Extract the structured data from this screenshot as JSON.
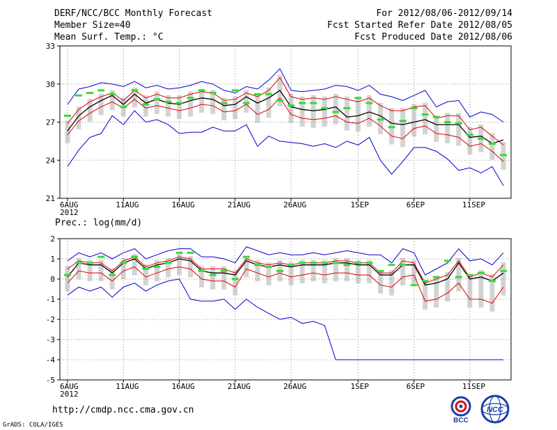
{
  "header": {
    "title": "DERF/NCC/BCC Monthly Forecast",
    "member_size": "Member Size=40",
    "variable": "Mean Surf. Temp.: °C",
    "period": "For 2012/08/06-2012/09/14",
    "started": "Fcst Started Refer Date 2012/08/05",
    "produced": "Fcst Produced Date 2012/08/06"
  },
  "footer": {
    "url": "http://cmdp.ncc.cma.gov.cn",
    "credit": "GrADS: COLA/IGES"
  },
  "logos": {
    "left": "BCC",
    "right": "NCC"
  },
  "colors": {
    "envelope": "#0000cc",
    "spread": "#dd0000",
    "mean": "#000000",
    "obs": "#33dd33",
    "bar": "#d3d3d3"
  },
  "chart_data": [
    {
      "type": "line",
      "title": "Mean Surf. Temp.: °C",
      "ylim": [
        21,
        33
      ],
      "yticks": [
        21,
        24,
        27,
        30,
        33
      ],
      "xticks": [
        {
          "day": 0,
          "label": "6AUG",
          "year": "2012"
        },
        {
          "day": 5,
          "label": "11AUG"
        },
        {
          "day": 10,
          "label": "16AUG"
        },
        {
          "day": 15,
          "label": "21AUG"
        },
        {
          "day": 20,
          "label": "26AUG"
        },
        {
          "day": 26,
          "label": "1SEP"
        },
        {
          "day": 31,
          "label": "6SEP"
        },
        {
          "day": 36,
          "label": "11SEP"
        }
      ],
      "days": 40,
      "grid": true,
      "series": [
        {
          "name": "ensemble max",
          "color": "#0000cc",
          "values": [
            28.4,
            29.6,
            29.8,
            30.1,
            30.0,
            29.8,
            30.2,
            29.7,
            29.9,
            29.6,
            29.7,
            29.9,
            30.2,
            30.0,
            29.5,
            29.3,
            29.8,
            29.6,
            30.3,
            31.2,
            29.5,
            29.4,
            29.5,
            29.6,
            29.9,
            29.8,
            29.5,
            29.9,
            29.2,
            29.0,
            28.7,
            29.1,
            29.5,
            28.2,
            28.6,
            28.7,
            27.4,
            27.8,
            27.6,
            27.0
          ]
        },
        {
          "name": "ensemble min",
          "color": "#0000cc",
          "values": [
            23.5,
            24.8,
            25.8,
            26.1,
            27.5,
            26.8,
            27.9,
            27.0,
            27.2,
            26.8,
            26.1,
            26.2,
            26.2,
            26.6,
            26.3,
            26.3,
            26.8,
            25.1,
            25.9,
            25.5,
            25.4,
            25.3,
            25.1,
            25.3,
            25.0,
            25.5,
            25.2,
            25.8,
            24.0,
            22.9,
            23.9,
            25.0,
            25.0,
            24.7,
            24.1,
            23.2,
            23.4,
            23.0,
            23.5,
            22.0
          ]
        },
        {
          "name": "upper spread",
          "color": "#dd0000",
          "values": [
            26.9,
            28.0,
            28.6,
            29.0,
            29.3,
            28.7,
            29.5,
            28.9,
            29.2,
            28.9,
            28.9,
            29.2,
            29.4,
            29.3,
            28.7,
            28.8,
            29.3,
            29.0,
            29.5,
            30.5,
            29.0,
            28.8,
            28.9,
            28.8,
            29.0,
            28.8,
            28.6,
            28.9,
            28.3,
            27.9,
            27.9,
            28.2,
            28.3,
            27.3,
            27.5,
            27.5,
            26.4,
            26.6,
            25.9,
            25.2
          ]
        },
        {
          "name": "ensemble mean",
          "color": "#000000",
          "values": [
            26.3,
            27.5,
            28.2,
            28.7,
            29.1,
            28.4,
            29.2,
            28.5,
            28.8,
            28.5,
            28.4,
            28.7,
            28.9,
            28.8,
            28.3,
            28.4,
            29.0,
            28.5,
            28.9,
            29.5,
            28.2,
            28.0,
            27.9,
            28.0,
            28.2,
            27.4,
            27.5,
            27.8,
            27.5,
            26.9,
            26.8,
            27.0,
            27.2,
            26.8,
            26.8,
            26.8,
            25.8,
            25.9,
            25.3,
            25.6
          ]
        },
        {
          "name": "lower spread",
          "color": "#dd0000",
          "values": [
            26.0,
            27.1,
            27.7,
            28.2,
            28.6,
            28.1,
            28.8,
            28.1,
            28.3,
            28.1,
            27.9,
            28.1,
            28.4,
            28.3,
            27.8,
            27.9,
            28.4,
            27.6,
            28.0,
            28.9,
            27.6,
            27.3,
            27.2,
            27.3,
            27.5,
            27.0,
            26.9,
            27.3,
            26.7,
            25.9,
            25.7,
            26.5,
            26.7,
            26.1,
            26.0,
            25.8,
            25.1,
            25.3,
            24.7,
            23.9
          ]
        },
        {
          "name": "observed",
          "color": "#33dd33",
          "style": "dash",
          "values": [
            27.5,
            29.1,
            29.3,
            29.5,
            29.2,
            28.2,
            29.5,
            28.4,
            28.8,
            28.6,
            28.5,
            28.9,
            29.5,
            29.3,
            28.5,
            29.5,
            28.5,
            29.2,
            29.2,
            28.7,
            28.3,
            28.5,
            28.5,
            28.1,
            27.8,
            28.1,
            28.9,
            28.5,
            27.2,
            26.6,
            27.1,
            28.1,
            27.6,
            27.4,
            27.0,
            26.9,
            26.0,
            25.7,
            25.3,
            24.4
          ]
        }
      ]
    },
    {
      "type": "line",
      "title": "Prec.: log(mm/d)",
      "ylim": [
        -5,
        2
      ],
      "yticks": [
        -5,
        -4,
        -3,
        -2,
        -1,
        0,
        1,
        2
      ],
      "xticks": [
        {
          "day": 0,
          "label": "6AUG",
          "year": "2012"
        },
        {
          "day": 5,
          "label": "11AUG"
        },
        {
          "day": 10,
          "label": "16AUG"
        },
        {
          "day": 15,
          "label": "21AUG"
        },
        {
          "day": 20,
          "label": "26AUG"
        },
        {
          "day": 26,
          "label": "1SEP"
        },
        {
          "day": 31,
          "label": "6SEP"
        },
        {
          "day": 36,
          "label": "11SEP"
        }
      ],
      "days": 40,
      "grid": true,
      "series": [
        {
          "name": "ensemble max",
          "color": "#0000cc",
          "values": [
            0.9,
            1.3,
            1.1,
            1.3,
            1.0,
            1.3,
            1.5,
            1.0,
            1.2,
            1.4,
            1.5,
            1.5,
            1.1,
            1.1,
            1.0,
            0.8,
            1.6,
            1.4,
            1.2,
            1.3,
            1.2,
            1.2,
            1.3,
            1.2,
            1.3,
            1.4,
            1.3,
            1.2,
            1.2,
            0.8,
            1.5,
            1.3,
            0.2,
            0.5,
            0.8,
            1.5,
            0.9,
            1.0,
            0.7,
            1.3
          ]
        },
        {
          "name": "ensemble min",
          "color": "#0000cc",
          "values": [
            -0.8,
            -0.4,
            -0.6,
            -0.4,
            -0.9,
            -0.4,
            -0.2,
            -0.6,
            -0.3,
            -0.1,
            0.0,
            -1.0,
            -1.1,
            -1.1,
            -1.0,
            -1.5,
            -1.0,
            -1.4,
            -1.7,
            -2.0,
            -1.9,
            -2.2,
            -2.1,
            -2.3,
            -4.0,
            -4.0,
            -4.0,
            -4.0,
            -4.0,
            -4.0,
            -4.0,
            -4.0,
            -4.0,
            -4.0,
            -4.0,
            -4.0,
            -4.0,
            -4.0,
            -4.0,
            -4.0
          ]
        },
        {
          "name": "upper spread",
          "color": "#dd0000",
          "values": [
            0.5,
            0.9,
            0.8,
            0.8,
            0.4,
            0.9,
            1.1,
            0.6,
            0.8,
            0.9,
            1.1,
            1.0,
            0.5,
            0.5,
            0.5,
            0.3,
            1.0,
            0.8,
            0.7,
            0.8,
            0.7,
            0.8,
            0.8,
            0.8,
            0.9,
            0.9,
            0.8,
            0.8,
            0.3,
            0.3,
            0.9,
            0.8,
            -0.2,
            0.0,
            0.2,
            0.9,
            0.1,
            0.3,
            0.1,
            0.7
          ]
        },
        {
          "name": "ensemble mean",
          "color": "#000000",
          "values": [
            0.1,
            0.8,
            0.7,
            0.7,
            0.3,
            0.8,
            1.0,
            0.5,
            0.7,
            0.8,
            1.0,
            0.9,
            0.4,
            0.3,
            0.3,
            0.2,
            0.9,
            0.7,
            0.6,
            0.7,
            0.6,
            0.7,
            0.7,
            0.7,
            0.8,
            0.8,
            0.7,
            0.7,
            0.2,
            0.2,
            0.7,
            0.7,
            -0.3,
            -0.2,
            0.0,
            0.8,
            0.0,
            0.1,
            -0.1,
            0.3
          ]
        },
        {
          "name": "lower spread",
          "color": "#dd0000",
          "values": [
            -0.2,
            0.4,
            0.3,
            0.3,
            -0.1,
            0.4,
            0.6,
            0.1,
            0.3,
            0.5,
            0.6,
            0.5,
            0.0,
            -0.1,
            -0.1,
            -0.4,
            0.5,
            0.3,
            0.1,
            0.3,
            0.1,
            0.2,
            0.3,
            0.2,
            0.3,
            0.3,
            0.2,
            0.2,
            -0.3,
            -0.4,
            0.1,
            0.2,
            -1.1,
            -1.0,
            -0.7,
            -0.2,
            -1.0,
            -1.0,
            -1.2,
            -0.4
          ]
        },
        {
          "name": "observed",
          "color": "#33dd33",
          "style": "dash",
          "values": [
            0.2,
            0.8,
            0.8,
            1.1,
            0.2,
            0.8,
            1.1,
            0.5,
            0.6,
            0.8,
            1.3,
            1.3,
            0.4,
            0.2,
            0.4,
            0.0,
            1.1,
            0.7,
            0.6,
            0.4,
            0.7,
            0.8,
            0.8,
            0.8,
            0.8,
            0.7,
            0.8,
            0.8,
            0.4,
            0.7,
            0.7,
            -0.3,
            -0.1,
            0.1,
            0.9,
            0.1,
            0.2,
            0.3,
            -0.1,
            0.4
          ]
        }
      ]
    }
  ]
}
